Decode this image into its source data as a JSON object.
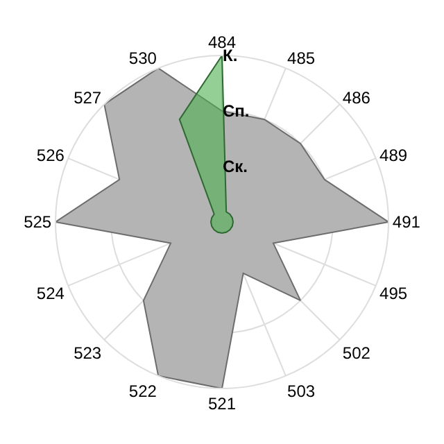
{
  "chart_data": {
    "type": "radar",
    "categories": [
      "484",
      "485",
      "486",
      "489",
      "491",
      "495",
      "502",
      "503",
      "521",
      "522",
      "523",
      "524",
      "525",
      "526",
      "527",
      "530"
    ],
    "series": [
      {
        "color": "#b4b4b4",
        "values": [
          2,
          2,
          2,
          2,
          3,
          1,
          2,
          1,
          3,
          3,
          2,
          1,
          3,
          2,
          3,
          3
        ]
      },
      {
        "color": "#4caf50",
        "values": [
          3,
          0.2,
          0.2,
          0.2,
          0.2,
          0.2,
          0.2,
          0.2,
          0.2,
          0.2,
          0.2,
          0.2,
          0.2,
          0.2,
          0.2,
          2
        ]
      }
    ],
    "ylim": [
      0,
      3
    ],
    "yticks": [
      {
        "value": 1,
        "label": "Ск."
      },
      {
        "value": 2,
        "label": "Сп."
      },
      {
        "value": 3,
        "label": "К."
      }
    ],
    "grid": true
  }
}
